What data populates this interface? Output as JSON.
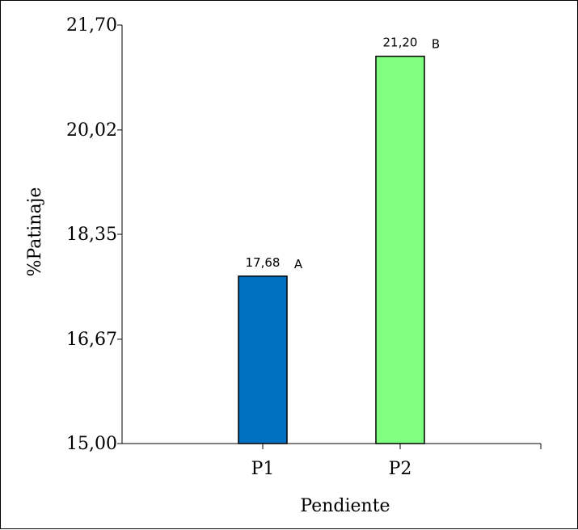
{
  "chart_data": {
    "type": "bar",
    "categories": [
      "P1",
      "P2"
    ],
    "values": [
      17.68,
      21.2
    ],
    "value_labels": [
      "17,68",
      "21,20"
    ],
    "significance_letters": [
      "A",
      "B"
    ],
    "colors": [
      "#0070c0",
      "#80ff80"
    ],
    "xlabel": "Pendiente",
    "ylabel": "%Patinaje",
    "ylim": [
      15.0,
      21.7
    ],
    "yticks": [
      15.0,
      16.67,
      18.35,
      20.02,
      21.7
    ],
    "ytick_labels": [
      "15,00",
      "16,67",
      "18,35",
      "20,02",
      "21,70"
    ],
    "grid": false,
    "legend": "none"
  }
}
